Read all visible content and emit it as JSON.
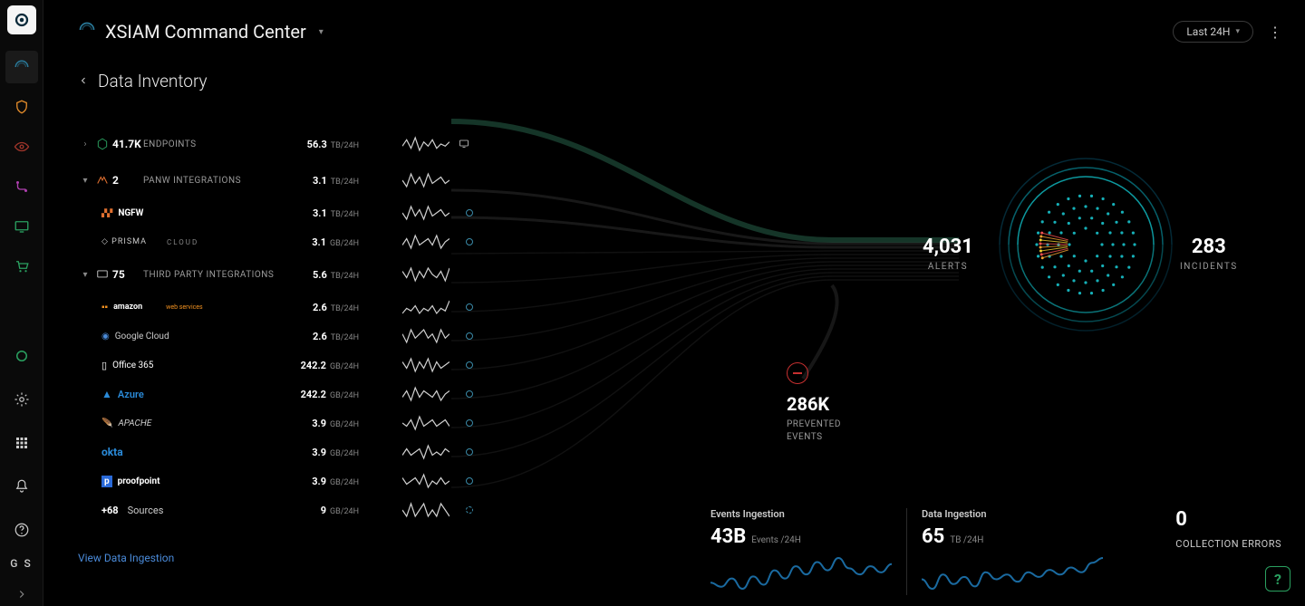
{
  "header": {
    "title": "XSIAM Command Center",
    "time_selector": "Last 24H"
  },
  "breadcrumb": {
    "title": "Data Inventory"
  },
  "sidebar": {
    "user_initials": "G S",
    "items": [
      {
        "name": "command-center",
        "color": "#2a7a9a",
        "active": true
      },
      {
        "name": "shield",
        "color": "#e08a2a"
      },
      {
        "name": "eye",
        "color": "#a0352a"
      },
      {
        "name": "routes",
        "color": "#b040b0"
      },
      {
        "name": "monitor",
        "color": "#2aa060"
      },
      {
        "name": "cart",
        "color": "#2aa060"
      }
    ],
    "bottom": [
      {
        "name": "ring",
        "color": "#2aa060"
      },
      {
        "name": "gear",
        "color": "#ccc"
      },
      {
        "name": "apps",
        "color": "#ccc"
      },
      {
        "name": "bell",
        "color": "#ccc"
      },
      {
        "name": "help",
        "color": "#ccc"
      }
    ]
  },
  "inventory": {
    "groups": [
      {
        "icon": "endpoint",
        "icon_color": "#2aa060",
        "expanded": false,
        "count": "41.7K",
        "label": "ENDPOINTS",
        "metric": {
          "val": "56.3",
          "unit": "TB/24H"
        },
        "spark": [
          5,
          8,
          4,
          9,
          3,
          7,
          5,
          8,
          4,
          6,
          5,
          7
        ],
        "end_icon": "monitor"
      },
      {
        "icon": "panw",
        "icon_color": "#e07030",
        "expanded": true,
        "count": "2",
        "label": "PANW INTEGRATIONS",
        "metric": {
          "val": "3.1",
          "unit": "TB/24H"
        },
        "spark": [
          6,
          4,
          8,
          5,
          7,
          4,
          8,
          5,
          6,
          7,
          5,
          6
        ],
        "children": [
          {
            "name": "NGFW",
            "logo": "ngfw",
            "metric": {
              "val": "3.1",
              "unit": "TB/24H"
            },
            "spark": [
              6,
              4,
              8,
              5,
              7,
              4,
              8,
              5,
              6,
              7,
              5,
              6
            ]
          },
          {
            "name": "PRISMA CLOUD",
            "logo": "prisma",
            "metric": {
              "val": "3.1",
              "unit": "GB/24H"
            },
            "spark": [
              5,
              7,
              4,
              8,
              5,
              6,
              7,
              5,
              8,
              4,
              6,
              7
            ]
          }
        ]
      },
      {
        "icon": "monitor",
        "icon_color": "#ccc",
        "expanded": true,
        "count": "75",
        "label": "THIRD PARTY INTEGRATIONS",
        "metric": {
          "val": "5.6",
          "unit": "TB/24H"
        },
        "spark": [
          7,
          5,
          8,
          4,
          7,
          5,
          8,
          6,
          5,
          7,
          4,
          8
        ],
        "children": [
          {
            "name": "amazon web services",
            "logo": "aws",
            "metric": {
              "val": "2.6",
              "unit": "TB/24H"
            },
            "spark": [
              4,
              6,
              5,
              7,
              4,
              6,
              5,
              7,
              4,
              6,
              5,
              9
            ]
          },
          {
            "name": "Google Cloud",
            "logo": "gcp",
            "metric": {
              "val": "2.6",
              "unit": "TB/24H"
            },
            "spark": [
              6,
              4,
              7,
              5,
              6,
              7,
              5,
              6,
              4,
              7,
              5,
              6
            ]
          },
          {
            "name": "Office 365",
            "logo": "o365",
            "metric": {
              "val": "242.2",
              "unit": "GB/24H"
            },
            "spark": [
              7,
              5,
              8,
              4,
              7,
              5,
              8,
              4,
              7,
              5,
              6,
              7
            ]
          },
          {
            "name": "Azure",
            "logo": "azure",
            "metric": {
              "val": "242.2",
              "unit": "GB/24H"
            },
            "spark": [
              5,
              7,
              4,
              8,
              5,
              7,
              6,
              5,
              7,
              4,
              6,
              7
            ]
          },
          {
            "name": "APACHE",
            "logo": "apache",
            "metric": {
              "val": "3.9",
              "unit": "GB/24H"
            },
            "spark": [
              6,
              5,
              7,
              4,
              8,
              5,
              6,
              7,
              5,
              6,
              7,
              5
            ]
          },
          {
            "name": "okta",
            "logo": "okta",
            "metric": {
              "val": "3.9",
              "unit": "GB/24H"
            },
            "spark": [
              5,
              7,
              5,
              6,
              7,
              4,
              8,
              5,
              6,
              5,
              7,
              6
            ]
          },
          {
            "name": "proofpoint",
            "logo": "proofpoint",
            "metric": {
              "val": "3.9",
              "unit": "GB/24H"
            },
            "spark": [
              7,
              5,
              6,
              7,
              5,
              8,
              4,
              6,
              5,
              7,
              5,
              6
            ]
          }
        ],
        "more": {
          "count": "+68",
          "label": "Sources",
          "metric": {
            "val": "9",
            "unit": "GB/24H"
          },
          "spark": [
            6,
            5,
            7,
            5,
            6,
            7,
            5,
            6,
            5,
            7,
            6,
            5
          ]
        }
      }
    ],
    "view_link": "View Data Ingestion"
  },
  "prevented": {
    "value": "286K",
    "label1": "PREVENTED",
    "label2": "EVENTS"
  },
  "alerts": {
    "value": "4,031",
    "label": "ALERTS"
  },
  "incidents": {
    "value": "283",
    "label": "INCIDENTS"
  },
  "bottom": {
    "events": {
      "title": "Events Ingestion",
      "value": "43B",
      "unit": "Events /24H",
      "spark": [
        12,
        10,
        14,
        9,
        15,
        11,
        18,
        14,
        20,
        16,
        22,
        18,
        24,
        19,
        16,
        20,
        17,
        21
      ],
      "color": "#1a6aa0"
    },
    "data": {
      "title": "Data Ingestion",
      "value": "65",
      "unit": "TB /24H",
      "spark": [
        14,
        10,
        16,
        12,
        15,
        11,
        17,
        14,
        16,
        13,
        17,
        15,
        18,
        16,
        19,
        17,
        21,
        23
      ],
      "color": "#1a6aa0"
    },
    "errors": {
      "value": "0",
      "label": "COLLECTION ERRORS"
    }
  },
  "flow": {
    "stroke": "#2a3a36",
    "stroke_accent": "#2a5a48",
    "width": 1.2,
    "paths_count": 16
  },
  "radial": {
    "arc_colors": [
      "#0a6a8a",
      "#0aa0b0",
      "#10c0c8"
    ],
    "dot_color": "#16b0b8",
    "dot_accent": "#f0a030",
    "dot_accent2": "#f05050",
    "rings": 3,
    "dots_per_ring": 24
  },
  "colors": {
    "bg": "#000000",
    "panel": "#0a0a0a",
    "text": "#e6e6e6",
    "text_dim": "#9a9a9a",
    "accent": "#2aa060",
    "link": "#4a8ad8",
    "spark": "#d0d0d0"
  }
}
